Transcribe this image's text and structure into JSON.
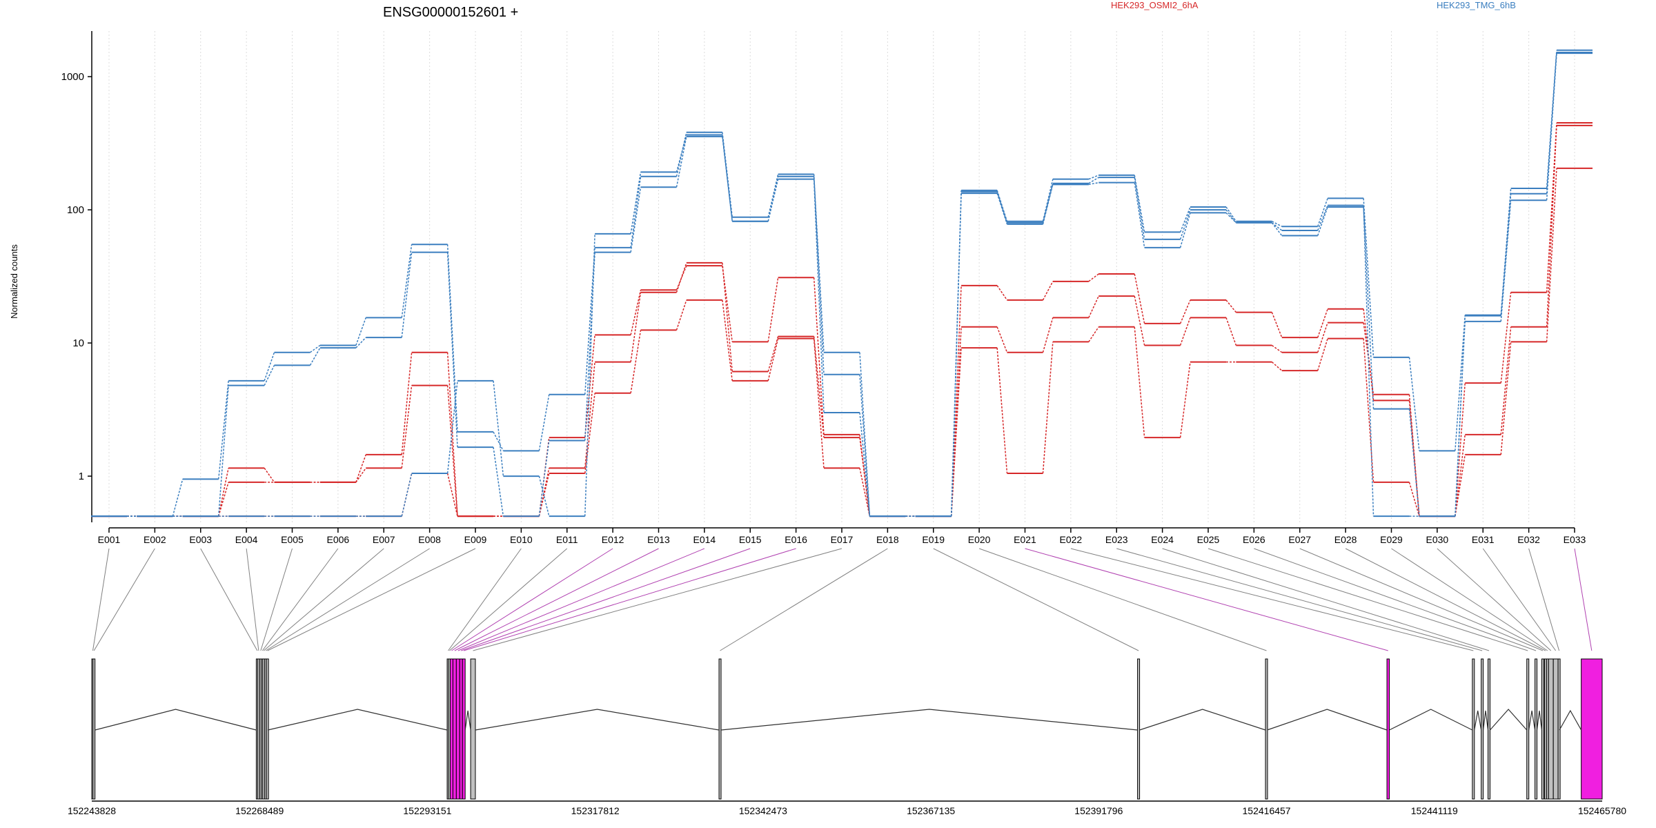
{
  "chart_data": {
    "type": "line",
    "title": "ENSG00000152601 +",
    "ylabel": "Normalized counts",
    "yscale": "log",
    "ylim": [
      0.45,
      2200
    ],
    "yticks": [
      1,
      10,
      100,
      1000
    ],
    "ytick_labels": [
      "1",
      "10",
      "100",
      "1000"
    ],
    "grid": "vertical dotted",
    "legend": [
      {
        "name": "HEK293_OSMI2_6hA",
        "color": "#d62728"
      },
      {
        "name": "HEK293_TMG_6hB",
        "color": "#3a7ebf"
      }
    ],
    "categories": [
      "E001",
      "E002",
      "E003",
      "E004",
      "E005",
      "E006",
      "E007",
      "E008",
      "E009",
      "E010",
      "E011",
      "E012",
      "E013",
      "E014",
      "E015",
      "E016",
      "E017",
      "E018",
      "E019",
      "E020",
      "E021",
      "E022",
      "E023",
      "E024",
      "E025",
      "E026",
      "E027",
      "E028",
      "E029",
      "E030",
      "E031",
      "E032",
      "E033"
    ],
    "series": [
      {
        "group": "HEK293_OSMI2_6hA",
        "color": "#d62728",
        "values": [
          0.5,
          0.5,
          0.5,
          1.15,
          0.9,
          0.9,
          1.15,
          4.8,
          0.5,
          0.5,
          1.05,
          4.2,
          12.5,
          21,
          5.2,
          10.8,
          1.15,
          0.5,
          0.5,
          9.2,
          1.05,
          10.2,
          13.2,
          1.95,
          7.2,
          7.2,
          6.2,
          10.8,
          0.9,
          0.5,
          1.45,
          10.2,
          205
        ]
      },
      {
        "group": "HEK293_OSMI2_6hA",
        "color": "#d62728",
        "values": [
          0.5,
          0.5,
          0.5,
          0.9,
          0.9,
          0.9,
          1.45,
          8.5,
          0.5,
          0.5,
          1.15,
          7.2,
          24,
          40,
          6.1,
          11.2,
          1.95,
          0.5,
          0.5,
          13.2,
          8.5,
          15.5,
          22.5,
          9.6,
          15.5,
          9.6,
          8.5,
          14.2,
          4.1,
          0.5,
          2.05,
          13.2,
          430
        ]
      },
      {
        "group": "HEK293_OSMI2_6hA",
        "color": "#d62728",
        "values": [
          0.5,
          0.5,
          0.5,
          0.5,
          0.5,
          0.5,
          0.5,
          1.05,
          0.5,
          0.5,
          1.95,
          11.5,
          25,
          38,
          10.2,
          31,
          2.05,
          0.5,
          0.5,
          27,
          21,
          29,
          33,
          14,
          21,
          17,
          11,
          18,
          3.7,
          0.5,
          5,
          24,
          450
        ]
      },
      {
        "group": "HEK293_TMG_6hB",
        "color": "#3a7ebf",
        "values": [
          0.5,
          0.5,
          0.5,
          4.8,
          6.8,
          9.2,
          11,
          48,
          1.65,
          0.5,
          1.85,
          48,
          148,
          355,
          82,
          170,
          3,
          0.5,
          0.5,
          133,
          78,
          155,
          160,
          52,
          95,
          80,
          64,
          105,
          3.2,
          0.5,
          14.5,
          118,
          1500
        ]
      },
      {
        "group": "HEK293_TMG_6hB",
        "color": "#3a7ebf",
        "values": [
          0.5,
          0.5,
          0.95,
          5.2,
          8.5,
          9.6,
          15.5,
          55,
          2.15,
          1.55,
          4.1,
          52,
          178,
          382,
          88,
          185,
          5.8,
          0.5,
          0.5,
          140,
          82,
          170,
          182,
          68,
          105,
          82,
          75,
          122,
          7.8,
          1.55,
          16.2,
          145,
          1580
        ]
      },
      {
        "group": "HEK293_TMG_6hB",
        "color": "#3a7ebf",
        "values": [
          0.5,
          0.5,
          0.5,
          0.5,
          0.5,
          0.5,
          0.5,
          1.05,
          5.2,
          1.0,
          0.5,
          66,
          192,
          365,
          82,
          178,
          8.5,
          0.5,
          0.5,
          137,
          80,
          158,
          175,
          60,
          100,
          80,
          70,
          108,
          0.5,
          0.5,
          16,
          132,
          1520
        ]
      }
    ],
    "gene_model": {
      "coord_ticks": [
        "152243828",
        "152268489",
        "152293151",
        "152317812",
        "152342473",
        "152367135",
        "152391796",
        "152416457",
        "152441119",
        "152465780"
      ],
      "coord_range": [
        152243828,
        152465780
      ],
      "highlight_color": "#f01fe0",
      "exons": [
        {
          "id": "E001",
          "start": 152243828,
          "end": 152244000
        },
        {
          "id": "E002",
          "start": 152244000,
          "end": 152244300
        },
        {
          "id": "E003",
          "start": 152268000,
          "end": 152268200
        },
        {
          "id": "E004",
          "start": 152268200,
          "end": 152268500
        },
        {
          "id": "E005",
          "start": 152268500,
          "end": 152268750
        },
        {
          "id": "E006",
          "start": 152268750,
          "end": 152268950
        },
        {
          "id": "E007",
          "start": 152268950,
          "end": 152269250
        },
        {
          "id": "E008",
          "start": 152269250,
          "end": 152269500
        },
        {
          "id": "E009",
          "start": 152269500,
          "end": 152269700
        },
        {
          "id": "E010",
          "start": 152296050,
          "end": 152296250
        },
        {
          "id": "E011",
          "start": 152296250,
          "end": 152296500
        },
        {
          "id": "E012",
          "start": 152296500,
          "end": 152296900,
          "highlight": true
        },
        {
          "id": "E013",
          "start": 152296900,
          "end": 152297400,
          "highlight": true
        },
        {
          "id": "E014",
          "start": 152297400,
          "end": 152297900,
          "highlight": true
        },
        {
          "id": "E015",
          "start": 152297900,
          "end": 152298300,
          "highlight": true
        },
        {
          "id": "E016",
          "start": 152298300,
          "end": 152298700,
          "highlight": true
        },
        {
          "id": "E017",
          "start": 152299500,
          "end": 152300200
        },
        {
          "id": "E018",
          "start": 152336000,
          "end": 152336300
        },
        {
          "id": "E019",
          "start": 152397500,
          "end": 152397800
        },
        {
          "id": "E020",
          "start": 152416300,
          "end": 152416550
        },
        {
          "id": "E021",
          "start": 152434150,
          "end": 152434500,
          "highlight": true
        },
        {
          "id": "E022",
          "start": 152446700,
          "end": 152447000
        },
        {
          "id": "E023",
          "start": 152448000,
          "end": 152448300
        },
        {
          "id": "E024",
          "start": 152449000,
          "end": 152449300
        },
        {
          "id": "E025",
          "start": 152454700,
          "end": 152455000
        },
        {
          "id": "E026",
          "start": 152455900,
          "end": 152456200
        },
        {
          "id": "E027",
          "start": 152456900,
          "end": 152457200
        },
        {
          "id": "E028",
          "start": 152457300,
          "end": 152457600
        },
        {
          "id": "E029",
          "start": 152457600,
          "end": 152457900
        },
        {
          "id": "E030",
          "start": 152457900,
          "end": 152458600
        },
        {
          "id": "E031",
          "start": 152458600,
          "end": 152459300
        },
        {
          "id": "E032",
          "start": 152459300,
          "end": 152459500
        },
        {
          "id": "E033",
          "start": 152462700,
          "end": 152465780,
          "highlight": true
        }
      ]
    }
  }
}
